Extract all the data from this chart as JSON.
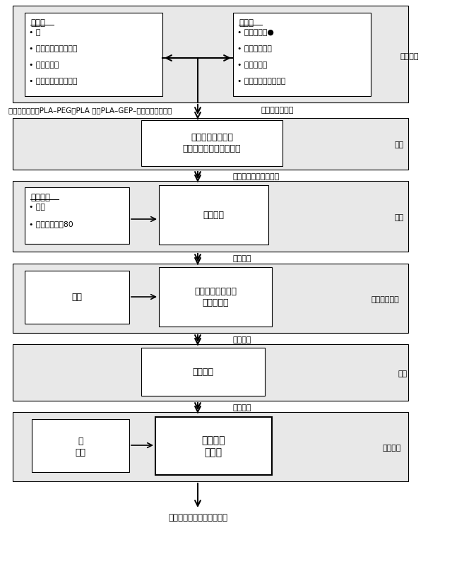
{
  "bg_color": "#e8e8e8",
  "white": "#ffffff",
  "black": "#000000",
  "title_bottom": "凍結又は凍結乎燥バイアル",
  "note": "・ポリマーは、PLA–PEG、PLA 及びPLA–GEP–リガンドを含む。",
  "step1_label": "溶液調製",
  "step1_left_title": "連続相",
  "step1_left_bullets": [
    "水",
    "コール酸ナトリウム",
    "酢酸エチル",
    "ベンジルアルコール"
  ],
  "step1_right_title": "分散相",
  "step1_right_bullets": [
    "ポリマー・●",
    "ドセタキセル",
    "酢酸エチル",
    "ベンジルアルコール"
  ],
  "arrow12_label": "粗エマルション",
  "step2_label": "乳化",
  "step2_box_line1": "高エネルギー乳化",
  "step2_box_line2": "（高圧ホモジナイザー）",
  "arrow23_label": "ファインエマルション",
  "step3_label": "急冷",
  "step3_left_title": "急冷溶液",
  "step3_left_bullets": [
    "冷水",
    "トゥウィーン80"
  ],
  "step3_box": "粒子急冷",
  "arrow34_label": "硬化粒子",
  "step4_label": "超ろ過／透析",
  "step4_left_box": "冷水",
  "step4_center_box_line1": "タンジェンシャル",
  "step4_center_box_line2": "フローろ過",
  "arrow45_label": "精製粒子",
  "step5_label": "ろ過",
  "step5_box": "滅菌ろ過",
  "arrow56_label": "滅菌粒子",
  "step6_label": "最終製剤",
  "step6_left_box_line1": "水",
  "step6_left_box_line2": "蔗糖",
  "step6_center_box_line1": "最終粒子",
  "step6_center_box_line2": "懸濁液"
}
